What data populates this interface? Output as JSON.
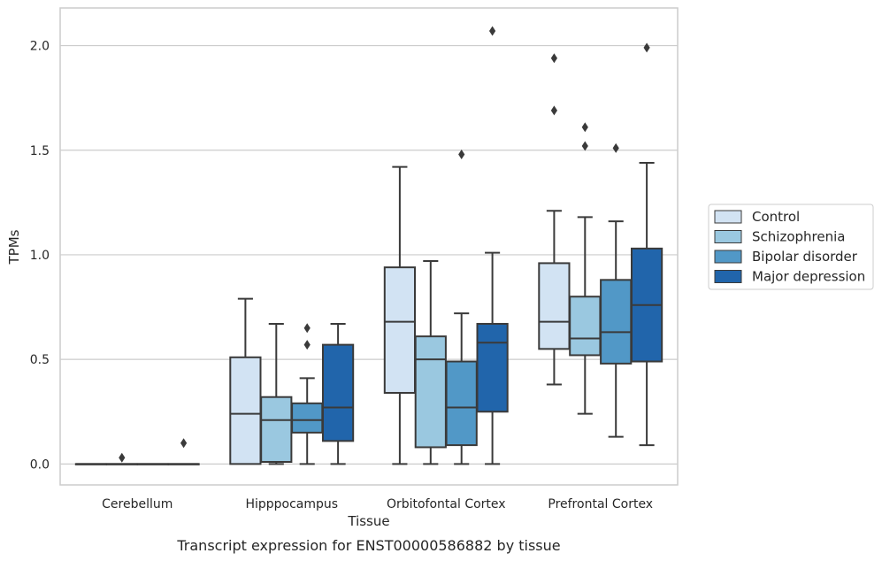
{
  "chart_data": {
    "type": "box",
    "xlabel": "Tissue",
    "ylabel": "TPMs",
    "caption": "Transcript expression for ENST00000586882 by tissue",
    "ylim": [
      -0.1,
      2.18
    ],
    "y_ticks": [
      0.0,
      0.5,
      1.0,
      1.5,
      2.0
    ],
    "y_tick_labels": [
      "0.0",
      "0.5",
      "1.0",
      "1.5",
      "2.0"
    ],
    "grid": "horizontal",
    "legend_position": "right",
    "categories": [
      "Cerebellum",
      "Hipppocampus",
      "Orbitofontal Cortex",
      "Prefrontal Cortex"
    ],
    "series": [
      {
        "name": "Control",
        "color": "#d2e3f3",
        "boxes": [
          {
            "whisker_low": 0.0,
            "q1": 0.0,
            "median": 0.0,
            "q3": 0.0,
            "whisker_high": 0.0,
            "outliers": []
          },
          {
            "whisker_low": 0.0,
            "q1": 0.0,
            "median": 0.24,
            "q3": 0.51,
            "whisker_high": 0.79,
            "outliers": []
          },
          {
            "whisker_low": 0.0,
            "q1": 0.34,
            "median": 0.68,
            "q3": 0.94,
            "whisker_high": 1.42,
            "outliers": []
          },
          {
            "whisker_low": 0.38,
            "q1": 0.55,
            "median": 0.68,
            "q3": 0.96,
            "whisker_high": 1.21,
            "outliers": [
              1.69,
              1.94
            ]
          }
        ]
      },
      {
        "name": "Schizophrenia",
        "color": "#9ac8e0",
        "boxes": [
          {
            "whisker_low": 0.0,
            "q1": 0.0,
            "median": 0.0,
            "q3": 0.0,
            "whisker_high": 0.0,
            "outliers": [
              0.03
            ]
          },
          {
            "whisker_low": 0.0,
            "q1": 0.01,
            "median": 0.21,
            "q3": 0.32,
            "whisker_high": 0.67,
            "outliers": []
          },
          {
            "whisker_low": 0.0,
            "q1": 0.08,
            "median": 0.5,
            "q3": 0.61,
            "whisker_high": 0.97,
            "outliers": []
          },
          {
            "whisker_low": 0.24,
            "q1": 0.52,
            "median": 0.6,
            "q3": 0.8,
            "whisker_high": 1.18,
            "outliers": [
              1.52,
              1.61
            ]
          }
        ]
      },
      {
        "name": "Bipolar disorder",
        "color": "#5198c7",
        "boxes": [
          {
            "whisker_low": 0.0,
            "q1": 0.0,
            "median": 0.0,
            "q3": 0.0,
            "whisker_high": 0.0,
            "outliers": []
          },
          {
            "whisker_low": 0.0,
            "q1": 0.15,
            "median": 0.21,
            "q3": 0.29,
            "whisker_high": 0.41,
            "outliers": [
              0.57,
              0.65
            ]
          },
          {
            "whisker_low": 0.0,
            "q1": 0.09,
            "median": 0.27,
            "q3": 0.49,
            "whisker_high": 0.72,
            "outliers": [
              1.48
            ]
          },
          {
            "whisker_low": 0.13,
            "q1": 0.48,
            "median": 0.63,
            "q3": 0.88,
            "whisker_high": 1.16,
            "outliers": [
              1.51
            ]
          }
        ]
      },
      {
        "name": "Major depression",
        "color": "#2165ab",
        "boxes": [
          {
            "whisker_low": 0.0,
            "q1": 0.0,
            "median": 0.0,
            "q3": 0.0,
            "whisker_high": 0.0,
            "outliers": [
              0.1
            ]
          },
          {
            "whisker_low": 0.0,
            "q1": 0.11,
            "median": 0.27,
            "q3": 0.57,
            "whisker_high": 0.67,
            "outliers": []
          },
          {
            "whisker_low": 0.0,
            "q1": 0.25,
            "median": 0.58,
            "q3": 0.67,
            "whisker_high": 1.01,
            "outliers": [
              2.07
            ]
          },
          {
            "whisker_low": 0.09,
            "q1": 0.49,
            "median": 0.76,
            "q3": 1.03,
            "whisker_high": 1.44,
            "outliers": [
              1.99
            ]
          }
        ]
      }
    ]
  }
}
